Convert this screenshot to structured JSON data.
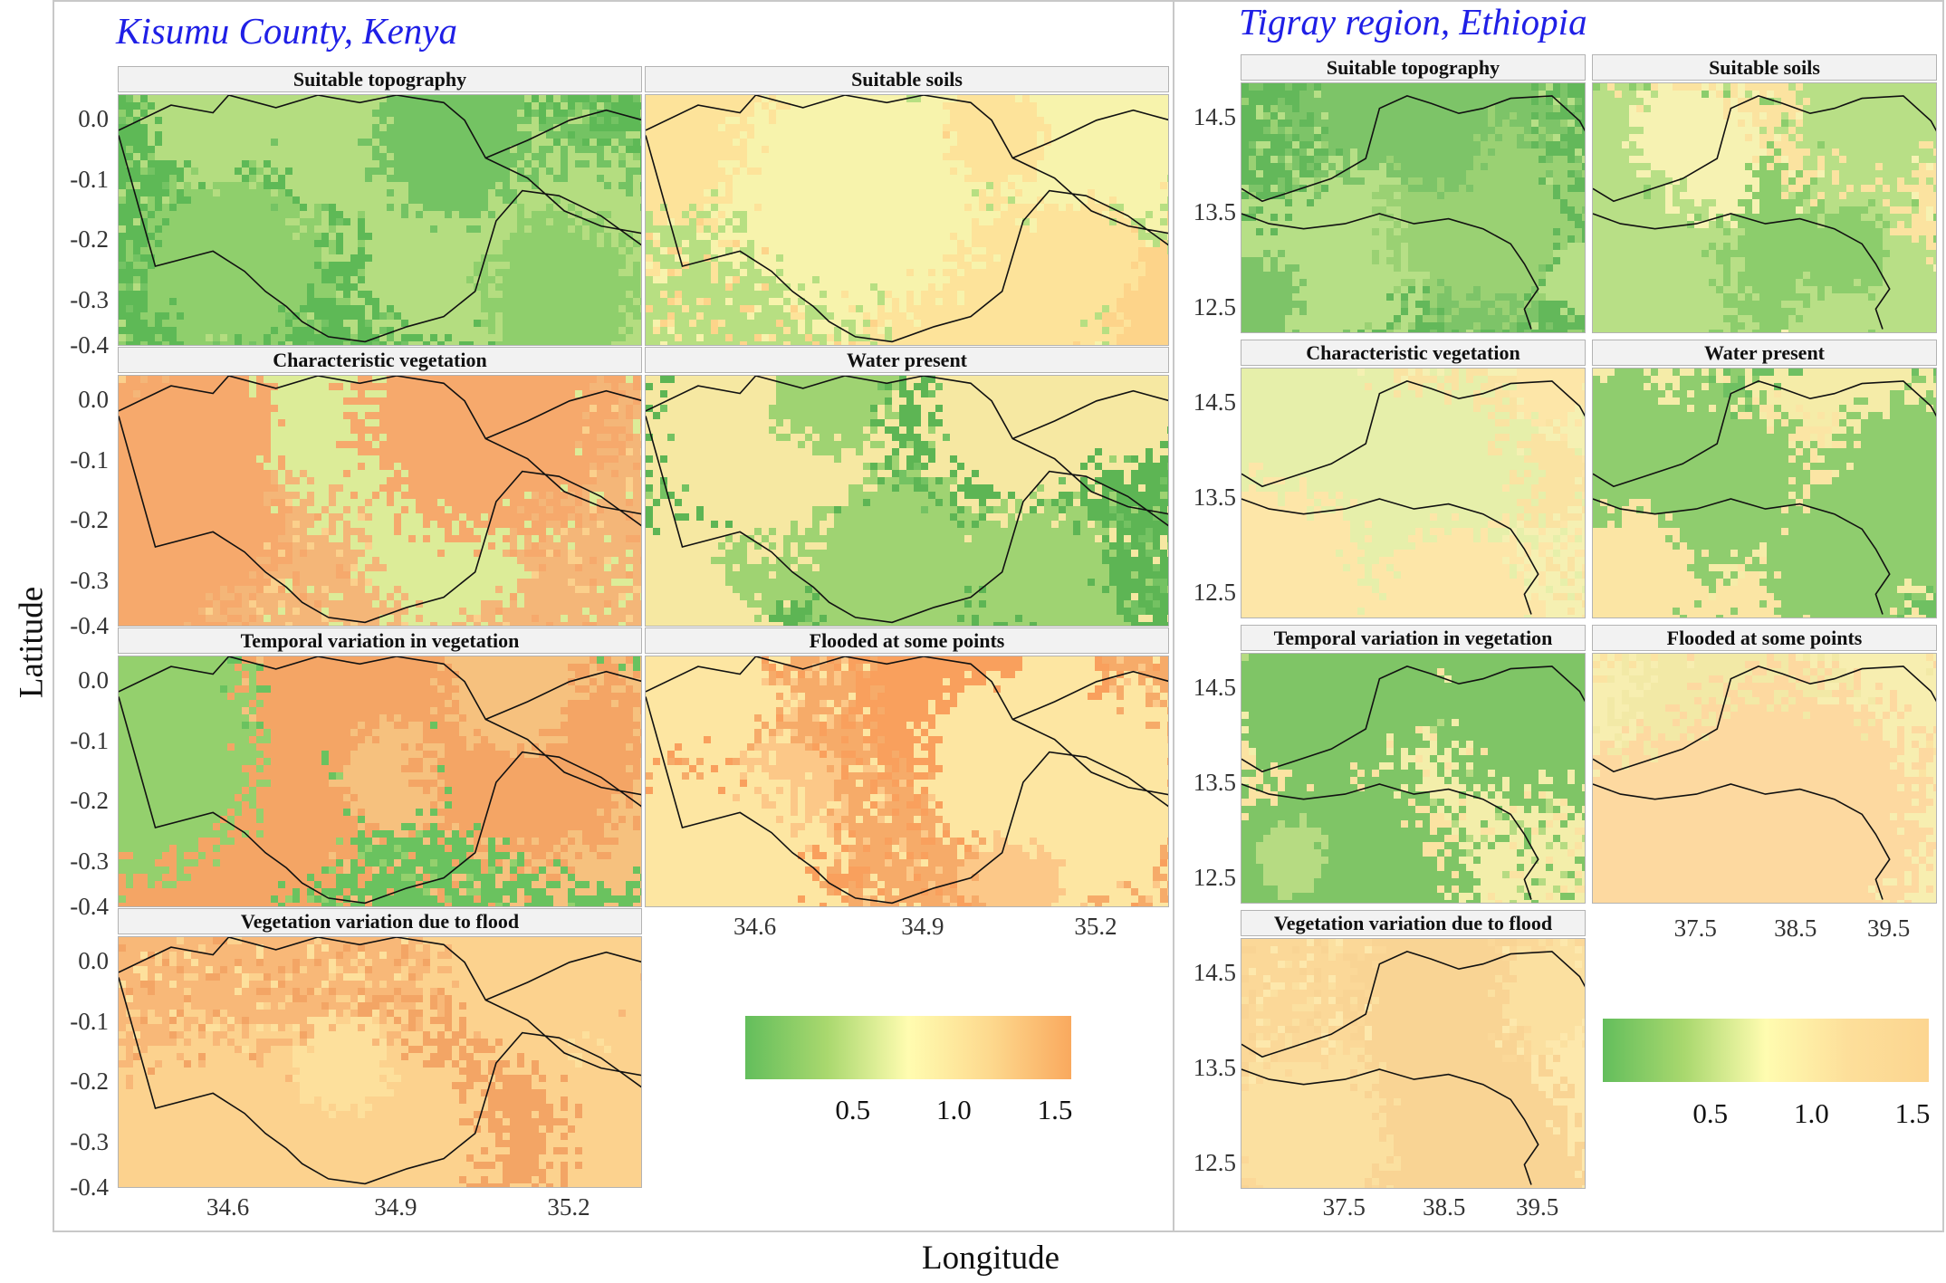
{
  "axis": {
    "x_title": "Longitude",
    "y_title": "Latitude"
  },
  "regions": [
    {
      "id": "kisumu",
      "title": "Kisumu County, Kenya",
      "y_ticks": [
        "0.0",
        "-0.1",
        "-0.2",
        "-0.3",
        "-0.4"
      ],
      "x_ticks": [
        "34.6",
        "34.9",
        "35.2"
      ],
      "legend": {
        "labels": [
          "0.5",
          "1.0",
          "1.5"
        ],
        "colors": [
          "#63be5c",
          "#a9d86e",
          "#fffcb0",
          "#fdd98e",
          "#f9a95e"
        ]
      },
      "panels": [
        {
          "title": "Suitable topography",
          "palette": [
            "#5eb956",
            "#74c363",
            "#8fcf6c",
            "#b4dd80"
          ]
        },
        {
          "title": "Suitable soils",
          "palette": [
            "#b7df82",
            "#fde39a",
            "#f7f3ac",
            "#fdd48a"
          ]
        },
        {
          "title": "Characteristic vegetation",
          "palette": [
            "#f4b678",
            "#fbd08c",
            "#dcec98",
            "#f6a96c"
          ]
        },
        {
          "title": "Water present",
          "palette": [
            "#5db554",
            "#74c262",
            "#9fd372",
            "#f6e8a2"
          ]
        },
        {
          "title": "Temporal variation in vegetation",
          "palette": [
            "#6ac25f",
            "#94d06d",
            "#f6c17e",
            "#f4a565"
          ]
        },
        {
          "title": "Flooded at some points",
          "palette": [
            "#f6ab69",
            "#fcc888",
            "#fde6a2",
            "#f9a05d"
          ]
        },
        {
          "title": "Vegetation variation due to flood",
          "palette": [
            "#f8b878",
            "#fcd28e",
            "#f3a565",
            "#fde09c"
          ]
        }
      ]
    },
    {
      "id": "tigray",
      "title": "Tigray region, Ethiopia",
      "y_ticks": [
        "14.5",
        "13.5",
        "12.5"
      ],
      "x_ticks": [
        "37.5",
        "38.5",
        "39.5"
      ],
      "legend": {
        "labels": [
          "0.5",
          "1.0",
          "1.5"
        ],
        "colors": [
          "#63be5c",
          "#a9d86e",
          "#fffcb0",
          "#fddf9a",
          "#fcd590"
        ]
      },
      "panels": [
        {
          "title": "Suitable topography",
          "palette": [
            "#63b85a",
            "#7dc468",
            "#9ad173",
            "#b6df86"
          ]
        },
        {
          "title": "Suitable soils",
          "palette": [
            "#fbe3a0",
            "#b8df86",
            "#f6f2b2",
            "#8ccd6c"
          ]
        },
        {
          "title": "Characteristic vegetation",
          "palette": [
            "#f5f0b2",
            "#fae3a2",
            "#e6efaa",
            "#fde6a8"
          ]
        },
        {
          "title": "Water present",
          "palette": [
            "#6fc062",
            "#f5eca8",
            "#8fcd6e",
            "#fbe5a4"
          ]
        },
        {
          "title": "Temporal variation in vegetation",
          "palette": [
            "#f3eeaa",
            "#7fc566",
            "#b6db82",
            "#fbe3a2"
          ]
        },
        {
          "title": "Flooded at some points",
          "palette": [
            "#fbe3a2",
            "#f7eeb0",
            "#fdd9a0",
            "#f2e9a6"
          ]
        },
        {
          "title": "Vegetation variation due to flood",
          "palette": [
            "#fbd898",
            "#fbe0a0",
            "#f9d494",
            "#fde8ac"
          ]
        }
      ]
    }
  ]
}
